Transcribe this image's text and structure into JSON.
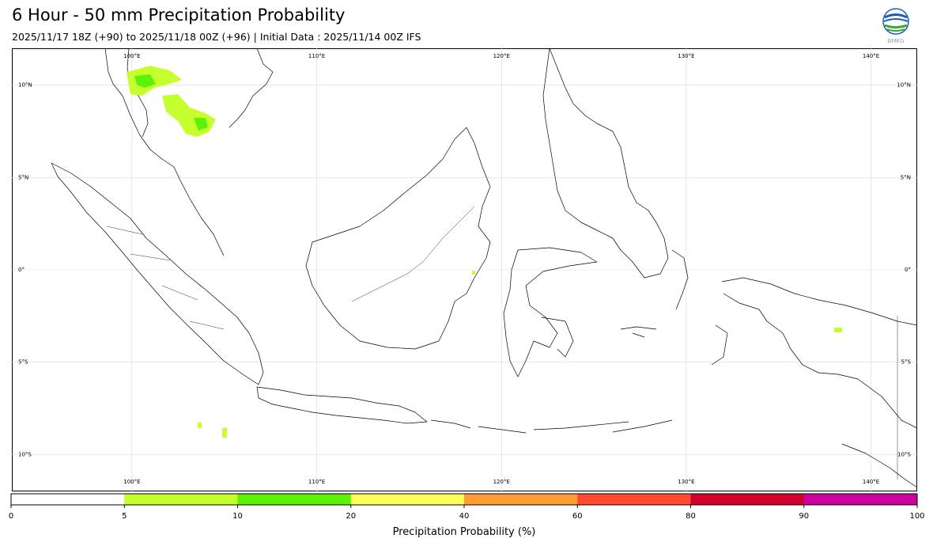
{
  "header": {
    "title": "6 Hour - 50 mm Precipitation Probability",
    "subtitle": "2025/11/17 18Z (+90) to 2025/11/18 00Z (+96) | Initial Data : 2025/11/14 00Z IFS",
    "logo_text": "BMKG"
  },
  "map": {
    "lon_range": [
      93.5,
      142.5
    ],
    "lat_range": [
      -12,
      12
    ],
    "lon_ticks": [
      {
        "value": 100,
        "label": "100°E"
      },
      {
        "value": 110,
        "label": "110°E"
      },
      {
        "value": 120,
        "label": "120°E"
      },
      {
        "value": 130,
        "label": "130°E"
      },
      {
        "value": 140,
        "label": "140°E"
      }
    ],
    "lat_ticks": [
      {
        "value": 10,
        "label": "10°N"
      },
      {
        "value": 5,
        "label": "5°N"
      },
      {
        "value": 0,
        "label": "0°"
      },
      {
        "value": -5,
        "label": "5°S"
      },
      {
        "value": -10,
        "label": "10°S"
      }
    ],
    "gridlines": true
  },
  "colorbar": {
    "label": "Precipitation Probability (%)",
    "bounds": [
      0,
      5,
      10,
      20,
      40,
      60,
      80,
      90,
      100
    ],
    "colors": [
      "#ffffff",
      "#c6ff2e",
      "#5cf20a",
      "#ffff5a",
      "#ff9c32",
      "#ff4b32",
      "#d2002d",
      "#cd00a0"
    ]
  },
  "colors": {
    "coast": "#000000",
    "border": "#000000",
    "grid": "#d9d9d9"
  }
}
